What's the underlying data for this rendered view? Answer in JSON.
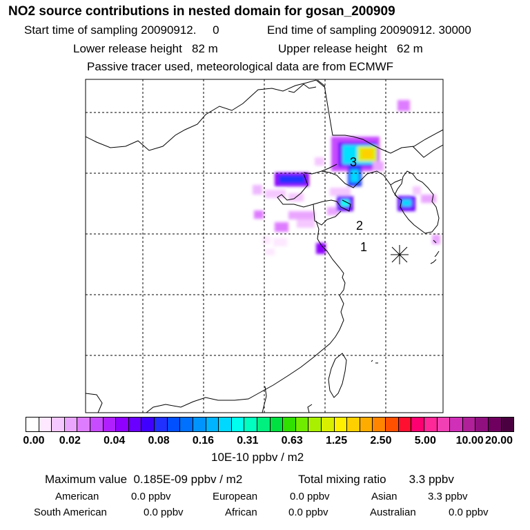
{
  "header": {
    "title": "NO2 source contributions in nested domain for gosan_200909",
    "start_time": "Start time of sampling 20090912.     0",
    "end_time": "End time of sampling 20090912. 30000",
    "lower_release": "Lower release height   82 m",
    "upper_release": "Upper release height   62 m",
    "tracer_note": "Passive tracer used, meteorological data are from ECMWF"
  },
  "map": {
    "region_labels": [
      {
        "id": "3",
        "text": "3"
      },
      {
        "id": "2",
        "text": "2"
      },
      {
        "id": "1",
        "text": "1"
      }
    ],
    "receptor_marker": "gosan-receptor-asterisk"
  },
  "legend": {
    "tick_labels": [
      "0.00",
      "0.02",
      "0.04",
      "0.08",
      "0.16",
      "0.31",
      "0.63",
      "1.25",
      "2.50",
      "5.00",
      "10.00",
      "20.00"
    ],
    "units": "10E-10 ppbv / m2",
    "colors": [
      "#ffffff",
      "#fde8ff",
      "#f5c8ff",
      "#eaa6ff",
      "#de7cff",
      "#c84cff",
      "#b020ff",
      "#8f00ff",
      "#6a00ff",
      "#4000ff",
      "#2030ff",
      "#0050ff",
      "#0070ff",
      "#0094ff",
      "#00b4ff",
      "#00d8ff",
      "#00ffee",
      "#00ffc0",
      "#00f080",
      "#00e040",
      "#30e000",
      "#70ec00",
      "#a8f000",
      "#d8f000",
      "#fff000",
      "#ffd000",
      "#ffac00",
      "#ff8400",
      "#ff5000",
      "#ff1030",
      "#ff0070",
      "#ff2898",
      "#f040b4",
      "#d030b8",
      "#b02098",
      "#901080",
      "#700060",
      "#4a0040"
    ]
  },
  "summary": {
    "maximum": "Maximum value  0.185E-09 ppbv / m2",
    "total": "Total mixing ratio       3.3 ppbv",
    "regions": [
      {
        "name": "American",
        "value": "0.0 ppbv"
      },
      {
        "name": "European",
        "value": "0.0 ppbv"
      },
      {
        "name": "Asian",
        "value": "3.3 ppbv"
      },
      {
        "name": "South American",
        "value": "0.0 ppbv"
      },
      {
        "name": "African",
        "value": "0.0 ppbv"
      },
      {
        "name": "Australian",
        "value": "0.0 ppbv"
      }
    ]
  }
}
